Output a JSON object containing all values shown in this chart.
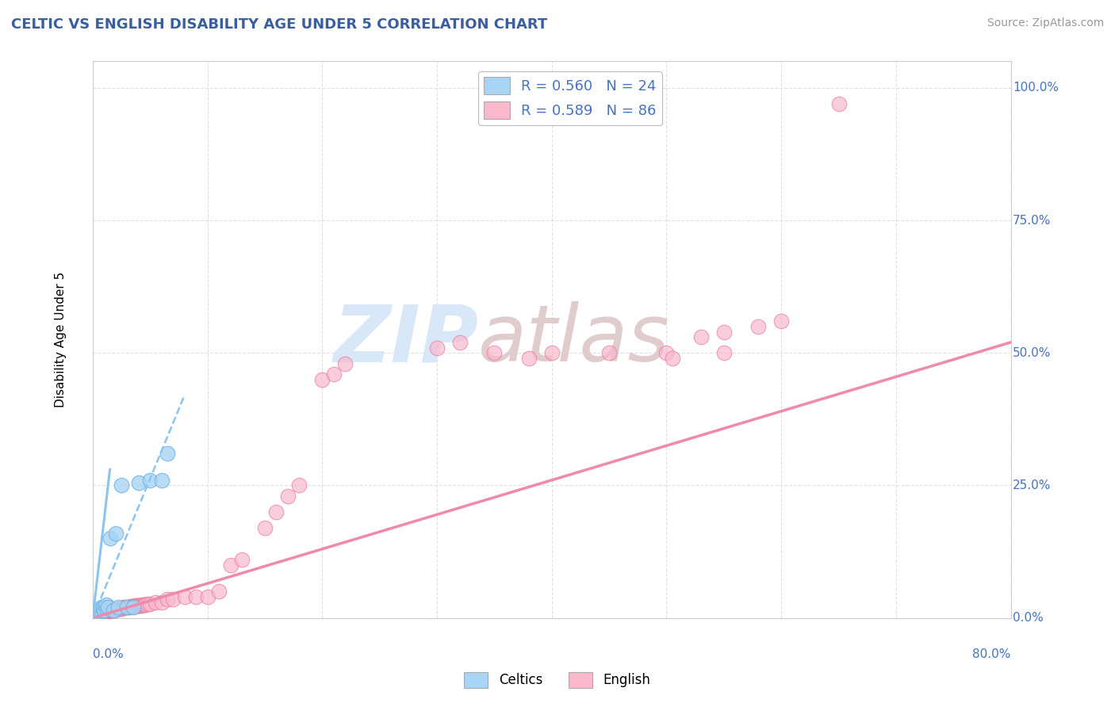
{
  "title": "CELTIC VS ENGLISH DISABILITY AGE UNDER 5 CORRELATION CHART",
  "source": "Source: ZipAtlas.com",
  "ylabel_label": "Disability Age Under 5",
  "celtics_R": "0.560",
  "celtics_N": "24",
  "english_R": "0.589",
  "english_N": "86",
  "celtics_color": "#A8D4F5",
  "celtics_edge": "#6AAEE0",
  "english_color": "#F9B8CC",
  "english_edge": "#E87AA0",
  "title_color": "#3A5FA0",
  "source_color": "#999999",
  "axis_label_color": "#4472C4",
  "watermark_color": "#D8E8F8",
  "celtics_x": [
    0.2,
    0.3,
    0.4,
    0.5,
    0.5,
    0.6,
    0.7,
    0.8,
    0.9,
    1.0,
    1.1,
    1.2,
    1.3,
    1.5,
    1.8,
    2.0,
    2.2,
    2.5,
    3.0,
    3.5,
    4.0,
    5.0,
    6.0,
    6.5
  ],
  "celtics_y": [
    0.5,
    1.0,
    1.0,
    1.0,
    1.5,
    1.2,
    1.5,
    2.0,
    2.0,
    1.5,
    2.0,
    2.5,
    2.0,
    15.0,
    1.5,
    16.0,
    2.0,
    25.0,
    2.0,
    2.0,
    25.5,
    26.0,
    26.0,
    31.0
  ],
  "english_x": [
    0.1,
    0.2,
    0.2,
    0.3,
    0.3,
    0.4,
    0.4,
    0.5,
    0.5,
    0.5,
    0.6,
    0.6,
    0.7,
    0.7,
    0.8,
    0.8,
    0.9,
    0.9,
    1.0,
    1.0,
    1.1,
    1.2,
    1.3,
    1.4,
    1.5,
    1.6,
    1.7,
    1.8,
    2.0,
    2.1,
    2.2,
    2.3,
    2.5,
    2.6,
    2.7,
    2.8,
    3.0,
    3.1,
    3.2,
    3.3,
    3.4,
    3.5,
    3.6,
    3.7,
    3.8,
    3.9,
    4.0,
    4.1,
    4.2,
    4.3,
    4.4,
    4.5,
    4.6,
    4.8,
    5.0,
    5.5,
    6.0,
    6.5,
    7.0,
    8.0,
    9.0,
    10.0,
    11.0,
    12.0,
    13.0,
    15.0,
    16.0,
    17.0,
    18.0,
    20.0,
    21.0,
    22.0,
    30.0,
    32.0,
    35.0,
    38.0,
    40.0,
    45.0,
    50.0,
    55.0,
    50.5,
    53.0,
    55.0,
    58.0,
    60.0,
    65.0
  ],
  "english_y": [
    0.3,
    0.3,
    0.4,
    0.4,
    0.5,
    0.5,
    0.6,
    0.6,
    0.7,
    0.8,
    0.8,
    0.9,
    1.0,
    1.0,
    1.0,
    1.1,
    1.1,
    1.2,
    1.2,
    1.3,
    1.3,
    1.3,
    1.3,
    1.4,
    1.4,
    1.5,
    1.5,
    1.5,
    1.6,
    1.6,
    1.7,
    1.8,
    1.8,
    1.9,
    2.0,
    2.0,
    2.0,
    2.0,
    2.1,
    2.2,
    2.2,
    2.2,
    2.2,
    2.3,
    2.3,
    2.4,
    2.4,
    2.4,
    2.4,
    2.5,
    2.5,
    2.5,
    2.5,
    2.6,
    2.6,
    3.0,
    3.0,
    3.5,
    3.5,
    4.0,
    4.0,
    4.0,
    5.0,
    10.0,
    11.0,
    17.0,
    20.0,
    23.0,
    25.0,
    45.0,
    46.0,
    48.0,
    51.0,
    52.0,
    50.0,
    49.0,
    50.0,
    50.0,
    50.0,
    50.0,
    49.0,
    53.0,
    54.0,
    55.0,
    56.0,
    97.0
  ],
  "xlim": [
    0,
    80
  ],
  "ylim": [
    0,
    105
  ],
  "trendline_celtics_color": "#8CC4EE",
  "trendline_english_color": "#EE8AAA",
  "grid_color": "#E0E0E0",
  "celtics_trend_x": [
    0,
    8
  ],
  "english_trend_x": [
    0,
    80
  ],
  "english_trend_y": [
    0,
    52
  ],
  "celtics_trend_y_start": 0,
  "celtics_trend_y_end": 42
}
